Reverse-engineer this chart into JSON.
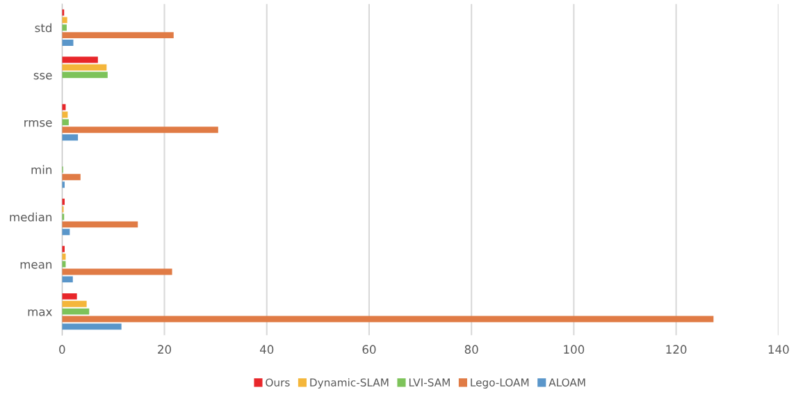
{
  "chart_data": {
    "type": "bar",
    "orientation": "horizontal",
    "categories": [
      "std",
      "sse",
      "rmse",
      "min",
      "median",
      "mean",
      "max"
    ],
    "series": [
      {
        "name": "Ours",
        "color": "#e8262a",
        "values": [
          0.4,
          7.0,
          0.7,
          null,
          0.5,
          0.5,
          2.9
        ]
      },
      {
        "name": "Dynamic-SLAM",
        "color": "#f4b63b",
        "values": [
          1.0,
          8.7,
          1.1,
          null,
          0.3,
          0.7,
          4.8
        ]
      },
      {
        "name": "LVI-SAM",
        "color": "#7dc35a",
        "values": [
          0.9,
          8.9,
          1.3,
          0.2,
          0.4,
          0.7,
          5.3
        ]
      },
      {
        "name": "Lego-LOAM",
        "color": "#e07b45",
        "values": [
          21.8,
          null,
          30.5,
          3.6,
          14.8,
          21.5,
          127.3
        ]
      },
      {
        "name": "ALOAM",
        "color": "#5a96ca",
        "values": [
          2.2,
          null,
          3.1,
          0.5,
          1.5,
          2.1,
          11.6
        ]
      }
    ],
    "xlim": [
      0,
      140
    ],
    "xticks": [
      0,
      20,
      40,
      60,
      80,
      100,
      120,
      140
    ],
    "grid": "x",
    "legend": "bottom"
  }
}
